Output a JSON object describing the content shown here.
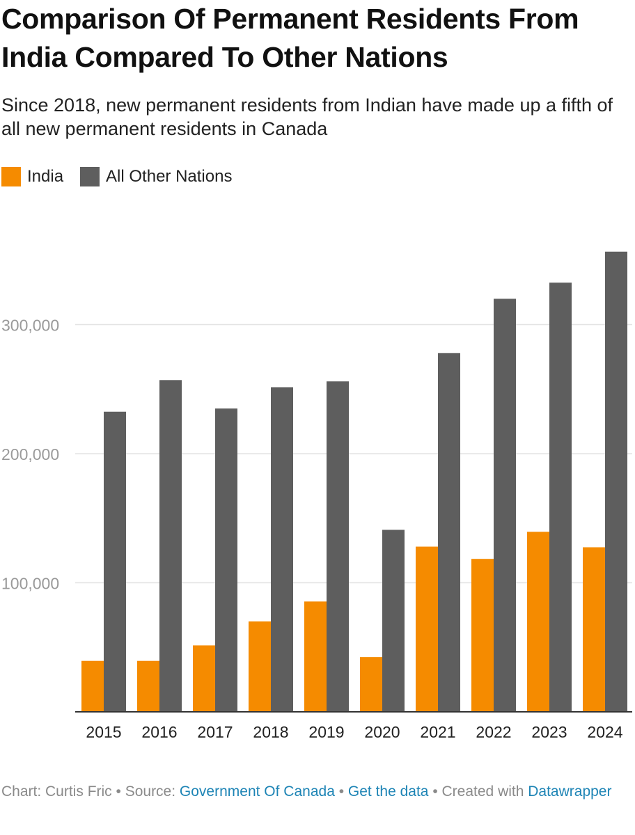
{
  "header": {
    "title": "Comparison Of Permanent Residents From India Compared To Other Nations",
    "subtitle": "Since 2018, new permanent residents from Indian have made up a fifth of all new permanent residents in Canada"
  },
  "legend": [
    {
      "name": "India",
      "color": "#f58b00"
    },
    {
      "name": "All Other Nations",
      "color": "#5e5e5e"
    }
  ],
  "chart_data": {
    "type": "bar",
    "title": "Comparison Of Permanent Residents From India Compared To Other Nations",
    "subtitle": "Since 2018, new permanent residents from Indian have made up a fifth of all new permanent residents in Canada",
    "categories": [
      "2015",
      "2016",
      "2017",
      "2018",
      "2019",
      "2020",
      "2021",
      "2022",
      "2023",
      "2024"
    ],
    "series": [
      {
        "name": "India",
        "color": "#f58b00",
        "values": [
          39500,
          39500,
          51500,
          70000,
          85500,
          42500,
          128000,
          118500,
          139500,
          127500
        ]
      },
      {
        "name": "All Other Nations",
        "color": "#5e5e5e",
        "values": [
          232500,
          257000,
          235000,
          251500,
          256000,
          141000,
          278000,
          320000,
          332500,
          356500
        ]
      }
    ],
    "y_ticks": [
      100000,
      200000,
      300000
    ],
    "y_tick_labels": [
      "100,000",
      "200,000",
      "300,000"
    ],
    "ylim": [
      0,
      356500
    ],
    "grid": true,
    "legend_position": "top-left",
    "xlabel": "",
    "ylabel": ""
  },
  "footer": {
    "prefix": "Chart: Curtis Fric • Source: ",
    "source_link": "Government Of Canada",
    "sep1": " • ",
    "data_link": "Get the data",
    "sep2": " • Created with ",
    "tool_link": "Datawrapper"
  }
}
